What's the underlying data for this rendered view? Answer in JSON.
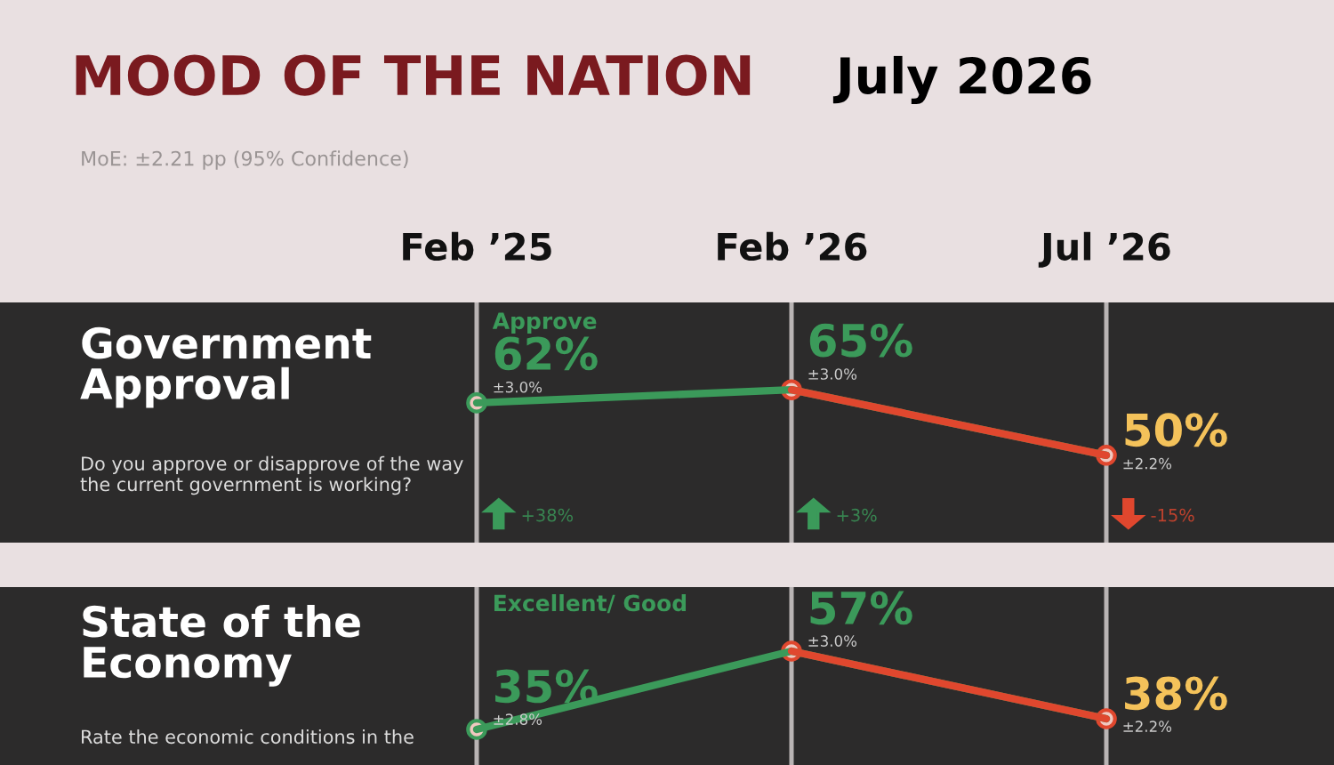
{
  "chart_data": [
    {
      "type": "other",
      "title": "MOOD OF THE NATION",
      "subtitle": "July 2026",
      "annotations": [
        "MoE: ±2.21 pp (95% Confidence)"
      ]
    },
    {
      "type": "line",
      "title": "Government Approval",
      "subtitle": "Do you approve or disapprove of the way the current government is working?",
      "categories": [
        "Feb ’25",
        "Feb ’26",
        "Jul ’26"
      ],
      "series": [
        {
          "name": "Approve",
          "colors": [
            "#3b9a5a",
            "#e0472e",
            "#e0472e"
          ],
          "values": [
            62,
            65,
            50
          ],
          "value_labels": [
            "62%",
            "65%",
            "50%"
          ]
        }
      ],
      "ylim": [
        30,
        85
      ],
      "grid": "x",
      "marker": "circle",
      "tick_labels": "x",
      "annotations": [
        {
          "text": "±3.0%",
          "x": "Feb ’25",
          "y": 62
        },
        {
          "text": "±3.0%",
          "x": "Feb ’26",
          "y": 65
        },
        {
          "text": "±2.2%",
          "x": "Jul ’26",
          "y": 50
        },
        "+38%",
        "+3%",
        "-15%"
      ]
    },
    {
      "type": "line",
      "title": "State of the Economy",
      "subtitle": "Rate the economic conditions in the",
      "categories": [
        "Feb ’25",
        "Feb ’26",
        "Jul ’26"
      ],
      "series": [
        {
          "name": "Excellent/ Good",
          "colors": [
            "#3b9a5a",
            "#e0472e",
            "#e0472e"
          ],
          "values": [
            35,
            57,
            38
          ],
          "value_labels": [
            "35%",
            "57%",
            "38%"
          ]
        }
      ],
      "ylim": [
        25,
        75
      ],
      "grid": "x",
      "marker": "circle",
      "tick_labels": false,
      "annotations": [
        {
          "text": "±2.8%",
          "x": "Feb ’25",
          "y": 35
        },
        {
          "text": "±3.0%",
          "x": "Feb ’26",
          "y": 57
        },
        {
          "text": "±2.2%",
          "x": "Jul ’26",
          "y": 38
        }
      ]
    }
  ]
}
